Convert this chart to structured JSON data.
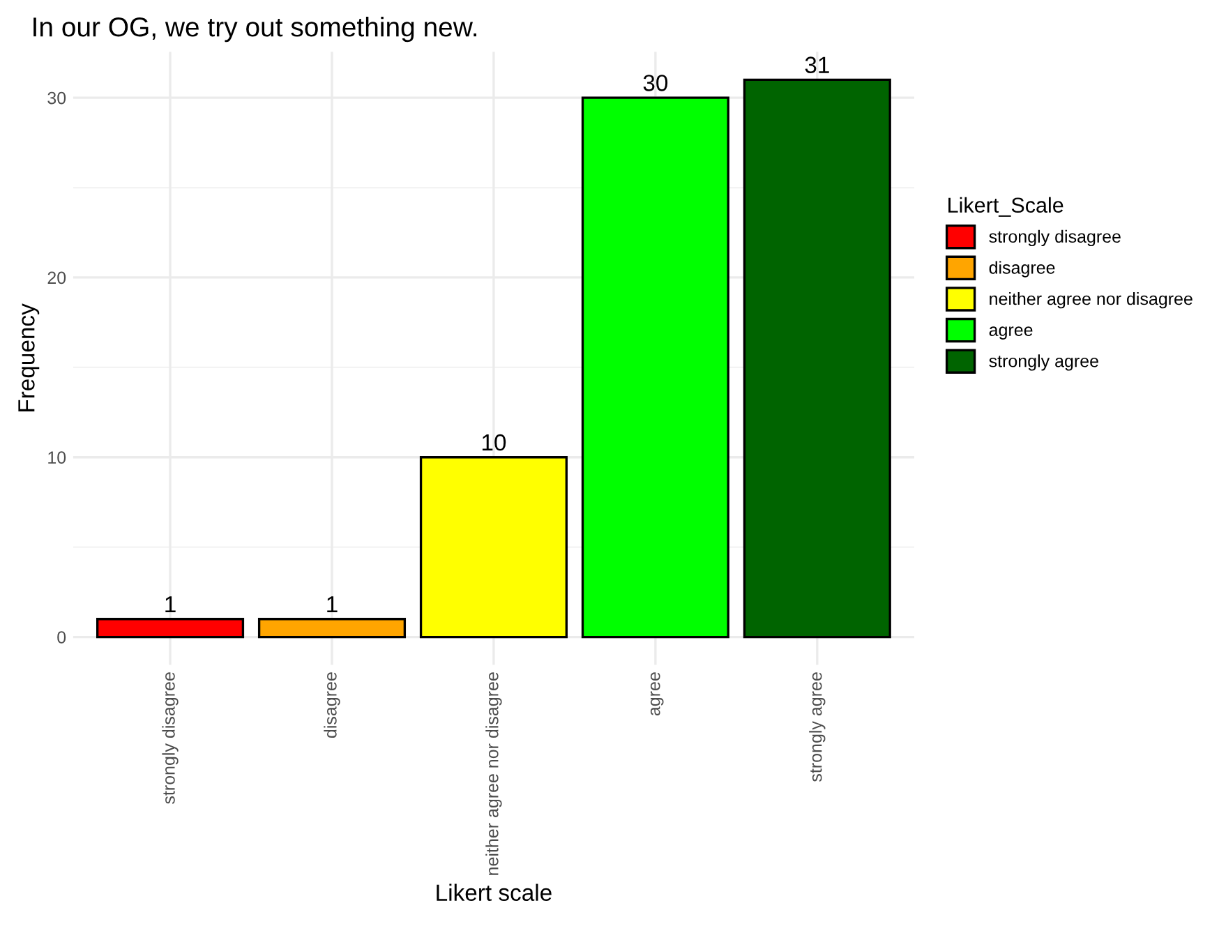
{
  "chart_data": {
    "type": "bar",
    "title": "In our OG, we try out something new.",
    "xlabel": "Likert scale",
    "ylabel": "Frequency",
    "legend_title": "Likert_Scale",
    "categories": [
      "strongly disagree",
      "disagree",
      "neither agree nor disagree",
      "agree",
      "strongly agree"
    ],
    "series": [
      {
        "name": "strongly disagree",
        "color": "#ff0000",
        "values": [
          1,
          null,
          null,
          null,
          null
        ]
      },
      {
        "name": "disagree",
        "color": "#ffa500",
        "values": [
          null,
          1,
          null,
          null,
          null
        ]
      },
      {
        "name": "neither agree nor disagree",
        "color": "#ffff00",
        "values": [
          null,
          null,
          10,
          null,
          null
        ]
      },
      {
        "name": "agree",
        "color": "#00ff00",
        "values": [
          null,
          null,
          null,
          30,
          null
        ]
      },
      {
        "name": "strongly agree",
        "color": "#006400",
        "values": [
          null,
          null,
          null,
          null,
          31
        ]
      }
    ],
    "ylim": [
      -1.55,
      32.55
    ],
    "yticks": [
      0,
      10,
      20,
      30
    ],
    "grid": true,
    "legend": "right",
    "data_labels": true
  }
}
